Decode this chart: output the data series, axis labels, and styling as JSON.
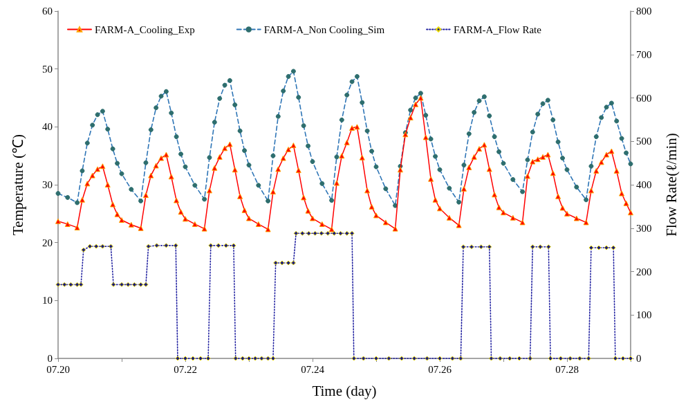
{
  "chart_data": {
    "type": "line",
    "xlabel": "Time (day)",
    "ylabel": "Temperature (℃)",
    "y2label": "Flow Rate(ℓ/min)",
    "xlim": [
      "--07-20",
      "--07-29"
    ],
    "xticks": [
      {
        "value": "--07-20",
        "label": "07.20"
      },
      {
        "value": "--07-21",
        "label": null
      },
      {
        "value": "--07-22",
        "label": "07.22"
      },
      {
        "value": "--07-23",
        "label": null
      },
      {
        "value": "--07-24",
        "label": "07.24"
      },
      {
        "value": "--07-25",
        "label": null
      },
      {
        "value": "--07-26",
        "label": "07.26"
      },
      {
        "value": "--07-27",
        "label": null
      },
      {
        "value": "--07-28",
        "label": "07.28"
      },
      {
        "value": "--07-29",
        "label": null
      }
    ],
    "ylim": [
      0,
      60
    ],
    "yticks": [
      0,
      10,
      20,
      30,
      40,
      50,
      60
    ],
    "y2lim": [
      0,
      800
    ],
    "y2ticks": [
      0,
      100,
      200,
      300,
      400,
      500,
      600,
      700,
      800
    ],
    "grid": false,
    "legend": "top",
    "x": [
      "--07-20T00:00",
      "--07-20T03:36",
      "--07-20T07:12",
      "--07-20T09:07",
      "--07-20T11:02",
      "--07-20T12:58",
      "--07-20T14:53",
      "--07-20T16:48",
      "--07-20T18:43",
      "--07-20T20:38",
      "--07-20T22:19",
      "--07-21T00:00",
      "--07-21T03:36",
      "--07-21T07:12",
      "--07-21T09:07",
      "--07-21T11:02",
      "--07-21T12:58",
      "--07-21T14:53",
      "--07-21T16:48",
      "--07-21T18:43",
      "--07-21T20:38",
      "--07-21T22:19",
      "--07-22T00:00",
      "--07-22T03:36",
      "--07-22T07:12",
      "--07-22T09:07",
      "--07-22T11:02",
      "--07-22T12:58",
      "--07-22T14:53",
      "--07-22T16:48",
      "--07-22T18:43",
      "--07-22T20:38",
      "--07-22T22:19",
      "--07-23T00:00",
      "--07-23T03:36",
      "--07-23T07:12",
      "--07-23T09:07",
      "--07-23T11:02",
      "--07-23T12:58",
      "--07-23T14:53",
      "--07-23T16:48",
      "--07-23T18:43",
      "--07-23T20:38",
      "--07-23T22:19",
      "--07-24T00:00",
      "--07-24T03:36",
      "--07-24T07:12",
      "--07-24T09:07",
      "--07-24T11:02",
      "--07-24T12:58",
      "--07-24T14:53",
      "--07-24T16:48",
      "--07-24T18:43",
      "--07-24T20:38",
      "--07-24T22:19",
      "--07-25T00:00",
      "--07-25T03:36",
      "--07-25T07:12",
      "--07-25T09:07",
      "--07-25T11:02",
      "--07-25T12:58",
      "--07-25T14:53",
      "--07-25T16:48",
      "--07-25T18:43",
      "--07-25T20:38",
      "--07-25T22:19",
      "--07-26T00:00",
      "--07-26T03:36",
      "--07-26T07:12",
      "--07-26T09:07",
      "--07-26T11:02",
      "--07-26T12:58",
      "--07-26T14:53",
      "--07-26T16:48",
      "--07-26T18:43",
      "--07-26T20:38",
      "--07-26T22:19",
      "--07-27T00:00",
      "--07-27T03:36",
      "--07-27T07:12",
      "--07-27T09:07",
      "--07-27T11:02",
      "--07-27T12:58",
      "--07-27T14:53",
      "--07-27T16:48",
      "--07-27T18:43",
      "--07-27T20:38",
      "--07-27T22:19",
      "--07-28T00:00",
      "--07-28T03:36",
      "--07-28T07:12",
      "--07-28T09:07",
      "--07-28T11:02",
      "--07-28T12:58",
      "--07-28T14:53",
      "--07-28T16:48",
      "--07-28T18:43",
      "--07-28T20:38",
      "--07-28T22:19",
      "--07-29T00:00"
    ],
    "series": [
      {
        "name": "FARM-A_Cooling_Exp",
        "color": "#ff0000",
        "marker": "triangle",
        "line_style": "solid",
        "values": [
          23.7,
          23.2,
          22.6,
          27.4,
          30.2,
          31.6,
          32.7,
          33.2,
          30.0,
          26.6,
          24.9,
          23.9,
          23.1,
          22.5,
          28.2,
          31.6,
          33.3,
          34.6,
          35.2,
          31.4,
          27.3,
          25.3,
          24.1,
          23.2,
          22.4,
          29.0,
          32.9,
          34.8,
          36.3,
          37.0,
          32.6,
          28.0,
          25.6,
          24.2,
          23.2,
          22.3,
          28.8,
          32.7,
          34.6,
          36.1,
          36.8,
          32.5,
          27.8,
          25.5,
          24.2,
          23.2,
          22.3,
          30.3,
          35.0,
          37.3,
          39.8,
          40.0,
          34.7,
          29.0,
          26.2,
          24.7,
          23.5,
          22.4,
          32.6,
          38.7,
          41.6,
          43.9,
          45.0,
          38.2,
          31.0,
          27.4,
          25.9,
          24.3,
          23.0,
          29.3,
          33.0,
          34.8,
          36.2,
          36.9,
          32.7,
          28.3,
          26.1,
          25.2,
          24.3,
          23.5,
          31.5,
          34.0,
          34.4,
          34.8,
          35.2,
          32.0,
          28.0,
          26.0,
          25.0,
          24.2,
          23.5,
          29.0,
          32.4,
          33.9,
          35.2,
          35.8,
          32.4,
          28.5,
          26.8,
          25.2
        ]
      },
      {
        "name": "FARM-A_Non Cooling_Sim",
        "color": "#2e75b6",
        "marker": "circle",
        "line_style": "dashed",
        "values": [
          28.5,
          27.8,
          26.9,
          32.4,
          37.2,
          40.3,
          42.1,
          42.7,
          39.6,
          36.2,
          33.7,
          31.9,
          29.2,
          27.2,
          33.8,
          39.5,
          43.3,
          45.3,
          46.1,
          42.4,
          38.3,
          35.3,
          33.1,
          29.9,
          27.5,
          34.7,
          40.8,
          44.9,
          47.2,
          48.0,
          43.8,
          39.3,
          35.9,
          33.4,
          29.9,
          27.2,
          35.0,
          41.8,
          46.2,
          48.7,
          49.6,
          45.1,
          40.2,
          36.7,
          34.0,
          30.2,
          27.3,
          34.8,
          41.2,
          45.5,
          47.8,
          48.7,
          44.2,
          39.3,
          35.8,
          33.1,
          29.3,
          26.4,
          33.2,
          39.0,
          42.9,
          45.0,
          45.8,
          42.0,
          37.9,
          34.9,
          32.6,
          29.4,
          27.0,
          33.4,
          38.8,
          42.5,
          44.5,
          45.2,
          41.9,
          38.3,
          35.7,
          33.7,
          30.9,
          28.8,
          34.3,
          39.1,
          42.2,
          44.0,
          44.6,
          41.2,
          37.4,
          34.6,
          32.6,
          29.6,
          27.4,
          33.2,
          38.3,
          41.6,
          43.4,
          44.1,
          41.0,
          38.0,
          35.5,
          33.6
        ]
      },
      {
        "name": "FARM-A_Flow Rate",
        "color": "#2020a0",
        "marker": "diamond",
        "line_style": "dotted",
        "axis": "y2",
        "x": [
          "--07-20T00:00",
          "--07-20T02:24",
          "--07-20T04:48",
          "--07-20T07:12",
          "--07-20T08:38",
          "--07-20T09:36",
          "--07-20T12:00",
          "--07-20T14:24",
          "--07-20T16:48",
          "--07-20T19:55",
          "--07-20T20:53",
          "--07-21T00:00",
          "--07-21T02:24",
          "--07-21T04:48",
          "--07-21T07:12",
          "--07-21T09:07",
          "--07-21T10:05",
          "--07-21T13:12",
          "--07-21T16:48",
          "--07-21T20:24",
          "--07-21T21:07",
          "--07-22T00:00",
          "--07-22T02:53",
          "--07-22T05:46",
          "--07-22T08:38",
          "--07-22T09:36",
          "--07-22T12:29",
          "--07-22T15:22",
          "--07-22T18:14",
          "--07-22T18:58",
          "--07-22T21:36",
          "--07-23T00:00",
          "--07-23T02:24",
          "--07-23T04:48",
          "--07-23T07:12",
          "--07-23T09:07",
          "--07-23T10:05",
          "--07-23T12:29",
          "--07-23T14:53",
          "--07-23T16:48",
          "--07-23T17:46",
          "--07-23T20:10",
          "--07-23T22:34",
          "--07-24T00:58",
          "--07-24T03:22",
          "--07-24T05:46",
          "--07-24T08:10",
          "--07-24T10:34",
          "--07-24T12:58",
          "--07-24T14:53",
          "--07-24T15:36",
          "--07-24T19:12",
          "--07-25T00:00",
          "--07-25T04:48",
          "--07-25T09:36",
          "--07-25T14:24",
          "--07-25T19:12",
          "--07-26T00:00",
          "--07-26T04:48",
          "--07-26T07:55",
          "--07-26T08:53",
          "--07-26T12:00",
          "--07-26T15:36",
          "--07-26T18:43",
          "--07-26T19:26",
          "--07-26T22:48",
          "--07-27T02:24",
          "--07-27T06:00",
          "--07-27T10:05",
          "--07-27T11:02",
          "--07-27T13:55",
          "--07-27T17:02",
          "--07-27T17:46",
          "--07-27T21:36",
          "--07-28T01:12",
          "--07-28T04:48",
          "--07-28T08:10",
          "--07-28T09:07",
          "--07-28T12:00",
          "--07-28T14:53",
          "--07-28T17:31",
          "--07-28T18:14",
          "--07-28T21:07",
          "--07-29T00:00"
        ],
        "values": [
          170,
          170,
          170,
          170,
          170,
          250,
          258,
          258,
          258,
          258,
          170,
          170,
          170,
          170,
          170,
          170,
          258,
          260,
          260,
          260,
          0,
          0,
          0,
          0,
          0,
          260,
          260,
          260,
          260,
          0,
          0,
          0,
          0,
          0,
          0,
          0,
          220,
          220,
          220,
          220,
          288,
          288,
          288,
          288,
          288,
          288,
          288,
          288,
          288,
          288,
          0,
          0,
          0,
          0,
          0,
          0,
          0,
          0,
          0,
          0,
          257,
          257,
          257,
          257,
          0,
          0,
          0,
          0,
          0,
          257,
          257,
          257,
          0,
          0,
          0,
          0,
          0,
          255,
          255,
          255,
          255,
          0,
          0,
          0
        ]
      }
    ]
  }
}
